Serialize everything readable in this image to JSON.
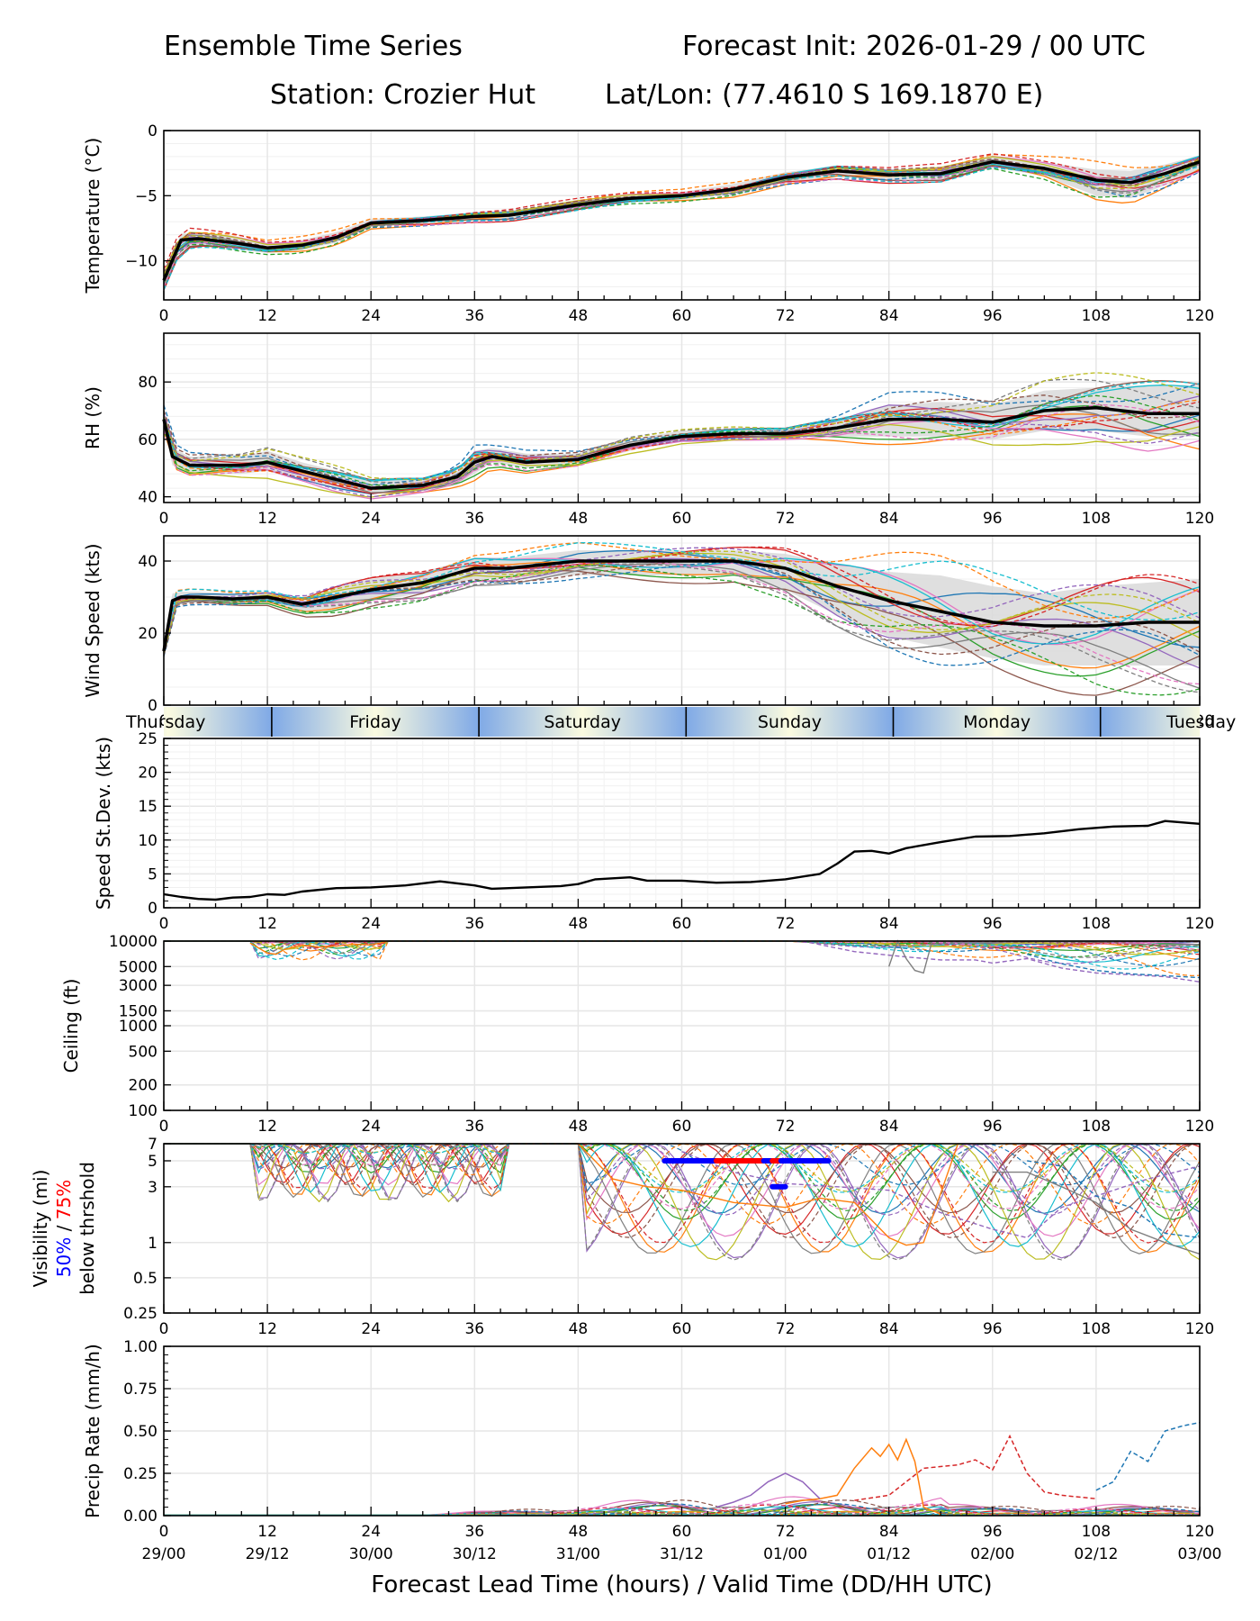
{
  "header": {
    "title_left": "Ensemble Time Series",
    "title_right": "Forecast Init: 2026-01-29 / 00 UTC",
    "station": "Station: Crozier Hut",
    "latlon": "Lat/Lon: (77.4610 S 169.1870 E)"
  },
  "colors": {
    "mean_line": "#000000",
    "spread_band": "#d9d9d9",
    "grid": "#e6e6e6",
    "members": [
      "#1f77b4",
      "#ff7f0e",
      "#2ca02c",
      "#d62728",
      "#9467bd",
      "#8c564b",
      "#e377c2",
      "#7f7f7f",
      "#bcbd22",
      "#17becf"
    ],
    "vis_50": "#0000ff",
    "vis_75": "#ff0000",
    "day_night": "#7fa9e6",
    "day_light": "#fbfbe0"
  },
  "chart_data": [
    {
      "id": "temperature",
      "type": "line",
      "ylabel": "Temperature (°C)",
      "ylim": [
        -13,
        0
      ],
      "yticks": [
        0,
        -5,
        -10
      ],
      "ytick_labels": [
        "0",
        "−5",
        "−10"
      ],
      "x": [
        0,
        2,
        4,
        8,
        12,
        16,
        20,
        24,
        30,
        36,
        40,
        48,
        54,
        60,
        66,
        72,
        78,
        84,
        90,
        96,
        102,
        108,
        112,
        116,
        120
      ],
      "mean": [
        -11.5,
        -8.4,
        -8.3,
        -8.6,
        -9.0,
        -8.8,
        -8.2,
        -7.1,
        -6.9,
        -6.6,
        -6.5,
        -5.7,
        -5.2,
        -5.0,
        -4.5,
        -3.6,
        -3.1,
        -3.4,
        -3.3,
        -2.4,
        -2.9,
        -3.8,
        -4.0,
        -3.3,
        -2.4
      ],
      "spread_lo": [
        -12,
        -9.0,
        -8.8,
        -9.1,
        -9.4,
        -9.2,
        -8.6,
        -7.4,
        -7.2,
        -6.9,
        -6.8,
        -6.0,
        -5.5,
        -5.3,
        -4.9,
        -4.0,
        -3.6,
        -3.8,
        -3.8,
        -2.8,
        -3.5,
        -5.0,
        -5.2,
        -4.2,
        -3.0
      ],
      "spread_hi": [
        -11,
        -7.9,
        -7.9,
        -8.2,
        -8.7,
        -8.4,
        -7.8,
        -6.8,
        -6.6,
        -6.3,
        -6.2,
        -5.4,
        -4.9,
        -4.7,
        -4.1,
        -3.2,
        -2.7,
        -3.0,
        -2.9,
        -2.0,
        -2.4,
        -3.0,
        -3.1,
        -2.6,
        -1.9
      ],
      "grid": true
    },
    {
      "id": "rh",
      "type": "line",
      "ylabel": "RH (%)",
      "ylim": [
        38,
        97
      ],
      "yticks": [
        40,
        60,
        80
      ],
      "ytick_labels": [
        "40",
        "60",
        "80"
      ],
      "x": [
        0,
        1,
        3,
        6,
        9,
        12,
        16,
        20,
        24,
        30,
        34,
        36,
        38,
        42,
        48,
        54,
        60,
        66,
        72,
        78,
        84,
        90,
        96,
        102,
        108,
        114,
        120
      ],
      "mean": [
        67,
        54,
        51,
        51,
        51,
        52,
        49,
        46,
        43,
        44,
        47,
        52,
        54,
        52,
        53,
        58,
        61,
        62,
        62,
        64,
        67,
        67,
        66,
        70,
        71,
        69,
        69
      ],
      "spread_lo": [
        64,
        51,
        48,
        48,
        48,
        49,
        46,
        43,
        41,
        42,
        44,
        48,
        52,
        50,
        51,
        56,
        60,
        61,
        61,
        61,
        61,
        61,
        60,
        63,
        63,
        61,
        61
      ],
      "spread_hi": [
        70,
        57,
        54,
        54,
        54,
        56,
        52,
        49,
        46,
        46,
        49,
        56,
        57,
        55,
        55,
        60,
        63,
        64,
        64,
        67,
        72,
        73,
        72,
        77,
        78,
        79,
        79
      ],
      "grid": true
    },
    {
      "id": "wind_speed",
      "type": "line",
      "ylabel": "Wind Speed (kts)",
      "ylim": [
        0,
        47
      ],
      "yticks": [
        0,
        20,
        40
      ],
      "ytick_labels": [
        "0",
        "20",
        "40"
      ],
      "x": [
        0,
        1,
        2,
        4,
        8,
        12,
        16,
        20,
        24,
        30,
        36,
        40,
        48,
        54,
        60,
        66,
        72,
        78,
        84,
        90,
        96,
        102,
        108,
        114,
        120
      ],
      "mean": [
        15,
        29,
        30,
        30,
        29.5,
        30,
        28,
        30,
        32,
        34,
        38,
        38,
        40,
        40,
        40,
        40,
        38,
        33,
        29,
        26,
        23,
        22,
        22,
        23,
        23
      ],
      "spread_lo": [
        14,
        28,
        28.5,
        28.5,
        28,
        28.5,
        26,
        27,
        29,
        31,
        35,
        35,
        36,
        36,
        36,
        36,
        32,
        25,
        19,
        16,
        13,
        11,
        11,
        11,
        11
      ],
      "spread_hi": [
        16,
        31,
        31.5,
        31.5,
        31,
        31.5,
        30,
        33,
        35,
        37,
        41,
        41,
        43,
        43,
        43,
        43,
        42,
        39,
        37,
        36,
        33,
        31,
        33,
        34,
        35
      ],
      "grid": true
    },
    {
      "id": "day_band",
      "type": "table",
      "days": [
        "Thursday",
        "Friday",
        "Saturday",
        "Sunday",
        "Monday",
        "Tuesday"
      ],
      "day_boundaries_hours": [
        12.5,
        36.5,
        60.5,
        84.5,
        108.5
      ]
    },
    {
      "id": "speed_stdev",
      "type": "line",
      "ylabel": "Speed St.Dev. (kts)",
      "ylim": [
        0,
        25
      ],
      "yticks": [
        0,
        5,
        10,
        15,
        20,
        25
      ],
      "ytick_labels": [
        "0",
        "5",
        "10",
        "15",
        "20",
        "25"
      ],
      "x": [
        0,
        2,
        4,
        6,
        8,
        10,
        12,
        14,
        16,
        20,
        24,
        28,
        32,
        34,
        36,
        38,
        42,
        46,
        48,
        50,
        54,
        56,
        60,
        64,
        68,
        72,
        76,
        78,
        80,
        82,
        84,
        86,
        90,
        94,
        98,
        102,
        106,
        110,
        114,
        116,
        120
      ],
      "values": [
        2.0,
        1.6,
        1.3,
        1.2,
        1.5,
        1.6,
        2.0,
        1.9,
        2.4,
        2.9,
        3.0,
        3.3,
        3.9,
        3.6,
        3.3,
        2.8,
        3.0,
        3.2,
        3.5,
        4.2,
        4.5,
        4.0,
        4.0,
        3.7,
        3.8,
        4.2,
        5.0,
        6.5,
        8.3,
        8.4,
        8.0,
        8.8,
        9.7,
        10.5,
        10.6,
        11.0,
        11.6,
        12.0,
        12.1,
        12.8,
        12.4
      ],
      "grid": true
    },
    {
      "id": "ceiling",
      "type": "line",
      "ylabel": "Ceiling (ft)",
      "yscale": "log",
      "ylim": [
        100,
        10000
      ],
      "yticks": [
        10000,
        5000,
        3000,
        1500,
        1000,
        500,
        200,
        100
      ],
      "ytick_labels": [
        "10000",
        "5000",
        "3000",
        "1500",
        "1000",
        "500",
        "200",
        "100"
      ],
      "member_samples": [
        {
          "x": [
            10,
            12,
            13,
            14,
            16,
            18,
            20,
            22,
            24,
            26
          ],
          "y": [
            9500,
            7200,
            7000,
            8000,
            9000,
            8500,
            8700,
            9200,
            9000,
            10000
          ]
        },
        {
          "x": [
            74,
            80,
            86,
            90,
            94,
            96,
            100,
            104,
            108,
            112,
            116,
            120
          ],
          "y": [
            10000,
            7500,
            6500,
            6000,
            6000,
            5500,
            6200,
            4800,
            4200,
            4000,
            3800,
            3300
          ]
        },
        {
          "x": [
            84,
            85,
            86,
            87,
            88,
            89
          ],
          "y": [
            5000,
            10000,
            6200,
            4500,
            4200,
            10000
          ]
        },
        {
          "x": [
            100,
            104,
            108,
            112,
            116,
            120
          ],
          "y": [
            7000,
            5400,
            4500,
            4100,
            3900,
            3700
          ]
        }
      ],
      "grid": true
    },
    {
      "id": "visibility",
      "type": "line",
      "ylabel_lines": [
        "Visibility (mi)",
        "50% / 75%",
        "below thrshold"
      ],
      "ylabel_50": "50%",
      "ylabel_sep": " / ",
      "ylabel_75": "75%",
      "yscale": "log",
      "ylim": [
        0.25,
        7
      ],
      "yticks": [
        7,
        5,
        3,
        1,
        0.5,
        0.25
      ],
      "ytick_labels": [
        "7",
        "5",
        "3",
        "1",
        "0.5",
        "0.25"
      ],
      "threshold_bars": [
        {
          "level": 5,
          "x_start": 58,
          "x_end": 64,
          "color": "blue"
        },
        {
          "level": 5,
          "x_start": 64,
          "x_end": 69.5,
          "color": "red"
        },
        {
          "level": 5,
          "x_start": 69.5,
          "x_end": 70.5,
          "color": "blue"
        },
        {
          "level": 5,
          "x_start": 70.5,
          "x_end": 71.5,
          "color": "red"
        },
        {
          "level": 5,
          "x_start": 71.5,
          "x_end": 77,
          "color": "blue"
        },
        {
          "level": 3,
          "x_start": 70.5,
          "x_end": 72,
          "color": "blue"
        }
      ],
      "member_samples": [
        {
          "x": [
            48,
            52,
            56,
            60,
            66,
            72,
            76,
            80,
            84,
            86,
            88,
            92
          ],
          "y": [
            7,
            3.5,
            3,
            2.8,
            2.2,
            2.0,
            2.4,
            2.2,
            1.1,
            0.95,
            1.0,
            7
          ]
        },
        {
          "x": [
            60,
            66,
            72,
            78,
            84,
            90,
            96,
            100,
            104,
            108,
            114,
            120
          ],
          "y": [
            6,
            4,
            3.2,
            3,
            2.8,
            1.8,
            1.3,
            1.1,
            2.0,
            2.5,
            3.5,
            4.5
          ]
        },
        {
          "x": [
            96,
            100,
            104,
            108,
            112,
            116,
            120
          ],
          "y": [
            4,
            4,
            3,
            2.2,
            1.3,
            1.0,
            0.8
          ]
        },
        {
          "x": [
            100,
            104,
            108,
            112,
            116,
            120
          ],
          "y": [
            5,
            4.5,
            2.5,
            2.0,
            1.2,
            1.1
          ]
        }
      ],
      "grid": true
    },
    {
      "id": "precip",
      "type": "line",
      "ylabel": "Precip Rate (mm/h)",
      "xlabel": "Forecast Lead Time (hours) / Valid Time (DD/HH UTC)",
      "ylim": [
        0,
        1.0
      ],
      "yticks": [
        0,
        0.25,
        0.5,
        0.75,
        1.0
      ],
      "ytick_labels": [
        "0.00",
        "0.25",
        "0.50",
        "0.75",
        "1.00"
      ],
      "member_samples": [
        {
          "x": [
            72,
            74,
            76,
            78,
            80,
            82,
            83,
            84,
            85,
            86,
            87,
            88,
            90
          ],
          "y": [
            0.07,
            0.09,
            0.1,
            0.12,
            0.28,
            0.4,
            0.35,
            0.42,
            0.33,
            0.45,
            0.32,
            0.05,
            0.01
          ]
        },
        {
          "x": [
            80,
            84,
            88,
            92,
            94,
            96,
            98,
            100,
            102,
            104,
            108
          ],
          "y": [
            0.09,
            0.12,
            0.28,
            0.3,
            0.33,
            0.27,
            0.47,
            0.25,
            0.14,
            0.12,
            0.1
          ]
        },
        {
          "x": [
            108,
            110,
            112,
            114,
            116,
            118,
            120
          ],
          "y": [
            0.15,
            0.2,
            0.38,
            0.32,
            0.5,
            0.53,
            0.55
          ]
        },
        {
          "x": [
            64,
            66,
            68,
            70,
            72,
            74,
            76
          ],
          "y": [
            0.05,
            0.08,
            0.12,
            0.2,
            0.25,
            0.2,
            0.1
          ]
        }
      ],
      "grid": true
    }
  ],
  "x_axis": {
    "xlim": [
      0,
      120
    ],
    "ticks": [
      0,
      12,
      24,
      36,
      48,
      60,
      72,
      84,
      96,
      108,
      120
    ],
    "tick_labels": [
      "0",
      "12",
      "24",
      "36",
      "48",
      "60",
      "72",
      "84",
      "96",
      "108",
      "120"
    ],
    "valid_time_labels": [
      "29/00",
      "29/12",
      "30/00",
      "30/12",
      "31/00",
      "31/12",
      "01/00",
      "01/12",
      "02/00",
      "02/12",
      "03/00"
    ],
    "xlabel": "Forecast Lead Time (hours) / Valid Time (DD/HH UTC)"
  }
}
